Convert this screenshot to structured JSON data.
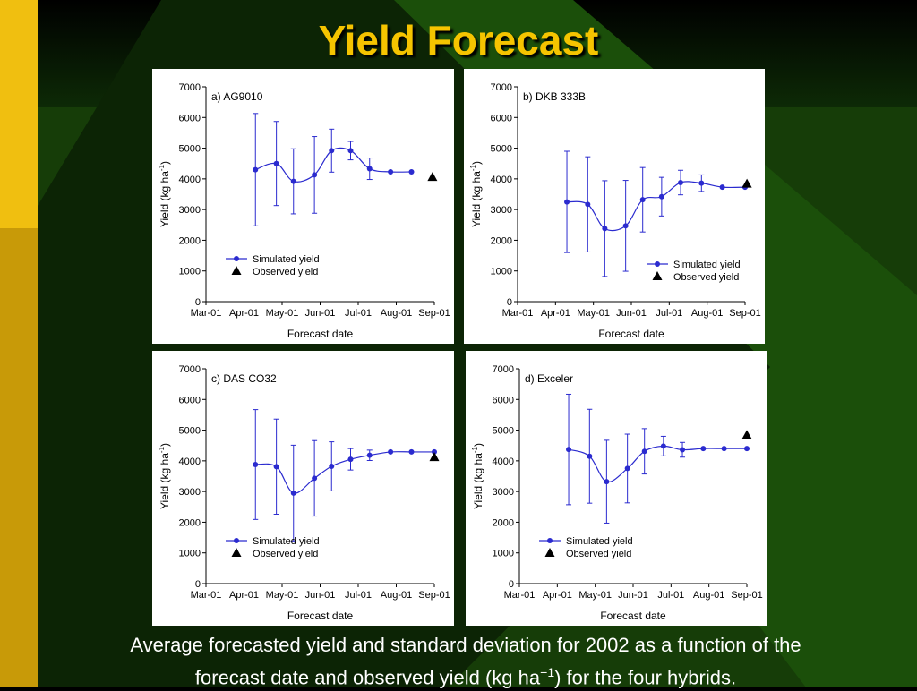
{
  "slide": {
    "title": "Yield Forecast",
    "caption_line1": "Average forecasted yield and standard deviation for 2002 as a function of the",
    "caption_line2": "forecast date and observed yield (kg ha",
    "caption_sup": "−1",
    "caption_line2_end": ") for the four hybrids.",
    "colors": {
      "title": "#f5c400",
      "series": "#2b2bcf",
      "observed": "#000000",
      "bg_green": "#1b4f0a",
      "left_bar": "#e8b10f"
    }
  },
  "chart_data": [
    {
      "type": "line",
      "label": "a) AG9010",
      "xlabel": "Forecast date",
      "ylabel": "Yield (kg ha",
      "ylabel_sup": "-1",
      "ylabel_end": ")",
      "x_ticks": [
        "Mar-01",
        "Apr-01",
        "May-01",
        "Jun-01",
        "Jul-01",
        "Aug-01",
        "Sep-01"
      ],
      "y_ticks": [
        "0",
        "1000",
        "2000",
        "3000",
        "4000",
        "5000",
        "6000",
        "7000"
      ],
      "ylim": [
        0,
        7000
      ],
      "legend_position": "lower-left",
      "series": [
        {
          "name": "Simulated yield",
          "x": [
            1.3,
            1.85,
            2.3,
            2.85,
            3.3,
            3.8,
            4.3,
            4.85,
            5.4
          ],
          "y": [
            4300,
            4500,
            3920,
            4130,
            4920,
            4920,
            4330,
            4230,
            4230
          ],
          "sd": [
            1830,
            1370,
            1060,
            1250,
            700,
            300,
            350,
            0,
            0
          ]
        },
        {
          "name": "Observed yield",
          "x": [
            5.95
          ],
          "y": [
            4050
          ]
        }
      ]
    },
    {
      "type": "line",
      "label": "b) DKB 333B",
      "xlabel": "Forecast date",
      "ylabel": "Yield (kg ha",
      "ylabel_sup": "-1",
      "ylabel_end": ")",
      "x_ticks": [
        "Mar-01",
        "Apr-01",
        "May-01",
        "Jun-01",
        "Jul-01",
        "Aug-01",
        "Sep-01"
      ],
      "y_ticks": [
        "0",
        "1000",
        "2000",
        "3000",
        "4000",
        "5000",
        "6000",
        "7000"
      ],
      "ylim": [
        0,
        7000
      ],
      "legend_position": "lower-right",
      "series": [
        {
          "name": "Simulated yield",
          "x": [
            1.3,
            1.85,
            2.3,
            2.85,
            3.3,
            3.8,
            4.3,
            4.85,
            5.4,
            6.0
          ],
          "y": [
            3250,
            3170,
            2380,
            2470,
            3320,
            3420,
            3880,
            3860,
            3730,
            3730
          ],
          "sd": [
            1650,
            1550,
            1560,
            1480,
            1050,
            630,
            400,
            270,
            0,
            0
          ]
        },
        {
          "name": "Observed yield",
          "x": [
            6.05
          ],
          "y": [
            3830
          ]
        }
      ]
    },
    {
      "type": "line",
      "label": "c) DAS CO32",
      "xlabel": "Forecast date",
      "ylabel": "Yield (kg ha",
      "ylabel_sup": "-1",
      "ylabel_end": ")",
      "x_ticks": [
        "Mar-01",
        "Apr-01",
        "May-01",
        "Jun-01",
        "Jul-01",
        "Aug-01",
        "Sep-01"
      ],
      "y_ticks": [
        "0",
        "1000",
        "2000",
        "3000",
        "4000",
        "5000",
        "6000",
        "7000"
      ],
      "ylim": [
        0,
        7000
      ],
      "legend_position": "lower-left",
      "series": [
        {
          "name": "Simulated yield",
          "x": [
            1.3,
            1.85,
            2.3,
            2.85,
            3.3,
            3.8,
            4.3,
            4.85,
            5.4,
            6.0
          ],
          "y": [
            3880,
            3810,
            2950,
            3430,
            3820,
            4050,
            4180,
            4290,
            4290,
            4290
          ],
          "sd": [
            1790,
            1550,
            1560,
            1230,
            800,
            350,
            170,
            0,
            0,
            0
          ]
        },
        {
          "name": "Observed yield",
          "x": [
            6.0
          ],
          "y": [
            4110
          ]
        }
      ]
    },
    {
      "type": "line",
      "label": "d) Exceler",
      "xlabel": "Forecast date",
      "ylabel": "Yield (kg ha",
      "ylabel_sup": "-1",
      "ylabel_end": ")",
      "x_ticks": [
        "Mar-01",
        "Apr-01",
        "May-01",
        "Jun-01",
        "Jul-01",
        "Aug-01",
        "Sep-01"
      ],
      "y_ticks": [
        "0",
        "1000",
        "2000",
        "3000",
        "4000",
        "5000",
        "6000",
        "7000"
      ],
      "ylim": [
        0,
        7000
      ],
      "legend_position": "lower-left",
      "series": [
        {
          "name": "Simulated yield",
          "x": [
            1.3,
            1.85,
            2.3,
            2.85,
            3.3,
            3.8,
            4.3,
            4.85,
            5.4,
            6.0
          ],
          "y": [
            4370,
            4150,
            3320,
            3750,
            4310,
            4480,
            4360,
            4400,
            4400,
            4400
          ],
          "sd": [
            1800,
            1530,
            1350,
            1120,
            740,
            320,
            240,
            0,
            0,
            0
          ]
        },
        {
          "name": "Observed yield",
          "x": [
            6.0
          ],
          "y": [
            4830
          ]
        }
      ]
    }
  ]
}
